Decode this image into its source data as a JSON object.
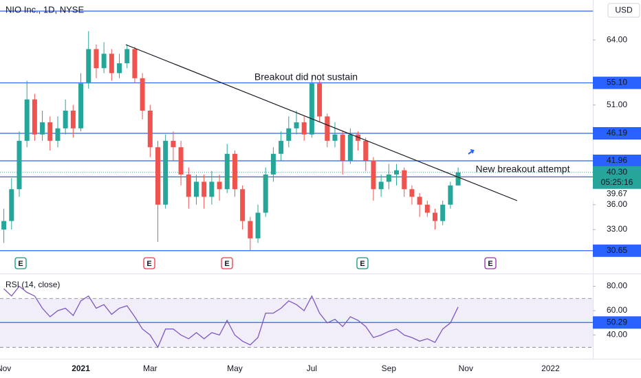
{
  "chart_data": [
    {
      "type": "candlestick",
      "title": "NIO Inc., 1D, NYSE",
      "currency": "USD",
      "categories": [
        "Nov",
        null,
        null,
        null,
        null,
        null,
        null,
        null,
        null,
        null,
        "2021",
        null,
        null,
        null,
        null,
        null,
        null,
        null,
        null,
        "Mar",
        null,
        null,
        null,
        null,
        null,
        null,
        null,
        null,
        null,
        null,
        "May",
        null,
        null,
        null,
        null,
        null,
        null,
        null,
        null,
        null,
        "Jul",
        null,
        null,
        null,
        null,
        null,
        null,
        null,
        null,
        null,
        "Sep",
        null,
        null,
        null,
        null,
        null,
        null,
        null,
        null,
        null,
        "Nov",
        null,
        null,
        null,
        null,
        null,
        null,
        null,
        null,
        null,
        null,
        "2022",
        null,
        null,
        null,
        null,
        null
      ],
      "open": [
        33,
        34,
        38,
        45,
        52,
        46,
        48,
        45,
        47,
        50,
        47,
        55,
        62,
        58,
        61,
        57,
        59,
        62,
        56,
        50,
        44,
        36,
        45,
        44,
        40,
        37,
        39,
        37,
        39,
        38,
        43,
        38,
        34,
        32,
        35,
        40,
        43,
        45,
        47,
        48,
        46,
        55,
        49,
        45,
        46,
        42,
        46,
        45,
        42,
        38,
        39,
        40,
        40.6,
        38,
        37,
        36,
        35,
        34,
        36,
        38.5,
        null,
        null,
        null,
        null,
        null,
        null,
        null,
        null,
        null,
        null,
        null,
        null,
        null,
        null,
        null,
        null,
        null
      ],
      "high": [
        35.5,
        39.5,
        46.5,
        55.5,
        53,
        50,
        49,
        49,
        52,
        51,
        57,
        66,
        63,
        63.5,
        62,
        61,
        63,
        62.5,
        57,
        51,
        45,
        46,
        46.5,
        45,
        41,
        40,
        40,
        40.5,
        40,
        44.5,
        43.5,
        38.5,
        34.5,
        36,
        41,
        44,
        46.5,
        49,
        50,
        49,
        56.5,
        55.5,
        49.5,
        48,
        46.5,
        47,
        46.5,
        45.5,
        42.5,
        40,
        41.5,
        41.5,
        41,
        38.5,
        37.5,
        36.5,
        35.5,
        36.5,
        39,
        41,
        null,
        null,
        null,
        null,
        null,
        null,
        null,
        null,
        null,
        null,
        null,
        null,
        null,
        null,
        null,
        null,
        null
      ],
      "low": [
        31.5,
        33,
        37,
        44,
        45,
        45,
        43.5,
        44,
        46,
        45.5,
        46.5,
        54,
        56,
        57,
        55.5,
        56,
        58,
        55,
        48.5,
        42.5,
        31.6,
        35.5,
        42,
        38.5,
        35.5,
        36,
        35.5,
        36,
        36.5,
        37.5,
        37,
        33,
        30.7,
        31.5,
        34.5,
        39,
        42,
        44,
        46,
        45,
        45.5,
        48,
        44,
        44,
        40,
        41.5,
        43.5,
        40.5,
        36.5,
        37,
        38,
        38.5,
        37,
        36,
        34.5,
        34.5,
        33,
        33.5,
        35.5,
        38.5,
        null,
        null,
        null,
        null,
        null,
        null,
        null,
        null,
        null,
        null,
        null,
        null,
        null,
        null,
        null,
        null,
        null
      ],
      "close": [
        34,
        38,
        45,
        52,
        46,
        48,
        45,
        47,
        50,
        47,
        55,
        62,
        58,
        61,
        57,
        59,
        62,
        56,
        50,
        44,
        36,
        45,
        44,
        40,
        37,
        39,
        37,
        39,
        38,
        43,
        38,
        34,
        32,
        35,
        40,
        43,
        45,
        47,
        48,
        46,
        55,
        49,
        45,
        46,
        42,
        46,
        45,
        42,
        38,
        39,
        40,
        40.6,
        38,
        37,
        36,
        35,
        34,
        36,
        38.5,
        40.3,
        null,
        null,
        null,
        null,
        null,
        null,
        null,
        null,
        null,
        null,
        null,
        null,
        null,
        null,
        null,
        null,
        null
      ],
      "up_color": "#26a69a",
      "down_color": "#ef5350",
      "log_scale": true,
      "ylim": [
        28.3,
        73.6
      ],
      "yticks": [
        {
          "value": 33,
          "label": "33.00"
        },
        {
          "value": 36,
          "label": "36.00"
        },
        {
          "value": 51,
          "label": "51.00"
        },
        {
          "value": 64,
          "label": "64.00"
        }
      ],
      "hline_color": "#2962ff",
      "hlines": [
        70.8,
        {
          "value": 55.1,
          "label": "55.10"
        },
        {
          "value": 46.19,
          "label": "46.19"
        },
        {
          "value": 41.96,
          "label": "41.96"
        },
        {
          "value": 39.67,
          "label": "39.67"
        },
        {
          "value": 30.65,
          "label": "30.65"
        }
      ],
      "last_price": {
        "value": 40.3,
        "label": "40.30"
      },
      "countdown": "05:25:16",
      "annotations": [
        "Breakout did not sustain",
        "New breakout attempt"
      ],
      "earnings_markers": [
        {
          "label": "E",
          "color": "#089981"
        },
        {
          "label": "E",
          "color": "#f23645"
        },
        {
          "label": "E",
          "color": "#f23645"
        },
        {
          "label": "E",
          "color": "#089981"
        },
        {
          "label": "E",
          "color": "#9c27b0"
        }
      ]
    },
    {
      "type": "line",
      "title": "RSI (14, close)",
      "color": "#7e57c2",
      "values": [
        78,
        72,
        80,
        75,
        72,
        62,
        55,
        60,
        62,
        56,
        68,
        72,
        62,
        65,
        57,
        62,
        64,
        55,
        45,
        40,
        30,
        45,
        45,
        40,
        37,
        42,
        37,
        42,
        40,
        52,
        40,
        35,
        32,
        38,
        58,
        58,
        62,
        68,
        65,
        60,
        72,
        58,
        50,
        53,
        47,
        55,
        52,
        47,
        38,
        40,
        43,
        45,
        40,
        38,
        35,
        37,
        34,
        45,
        50,
        63,
        null,
        null,
        null,
        null,
        null,
        null,
        null,
        null,
        null,
        null,
        null,
        null,
        null,
        null,
        null,
        null,
        null
      ],
      "ylim": [
        20.6,
        89.3
      ],
      "yticks": [
        {
          "value": 40,
          "label": "40.00"
        },
        {
          "value": 60,
          "label": "60.00"
        },
        {
          "value": 80,
          "label": "80.00"
        }
      ],
      "band": [
        30,
        70
      ],
      "hline": {
        "value": 50.29,
        "label": "50.29"
      },
      "hline_color": "#2962ff"
    }
  ]
}
